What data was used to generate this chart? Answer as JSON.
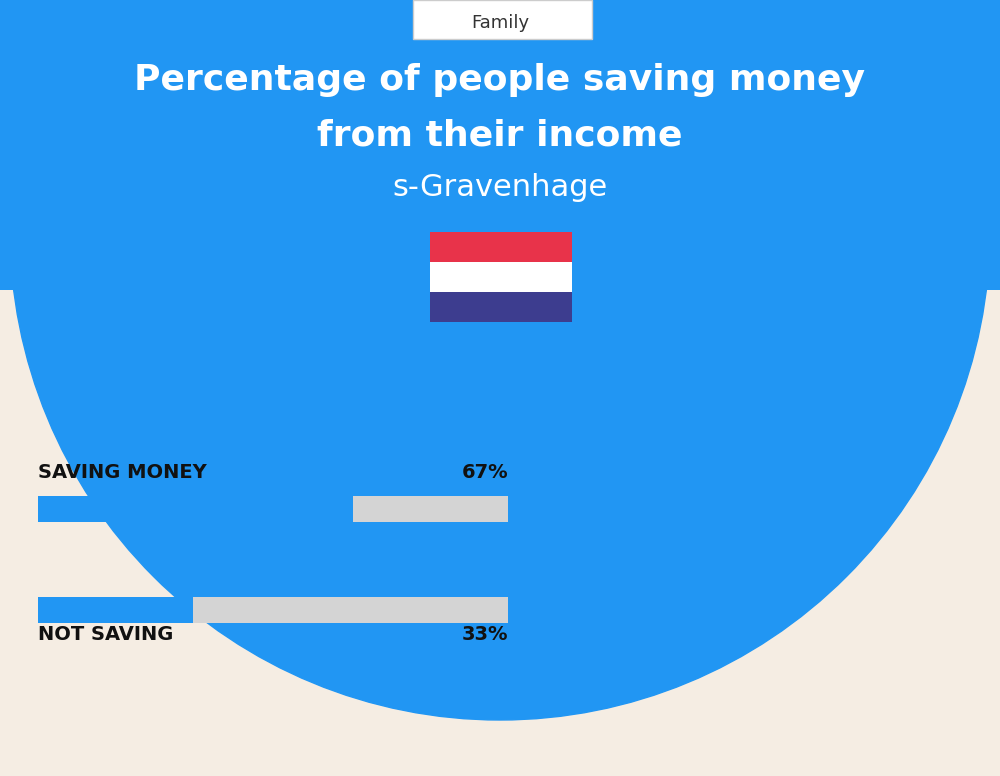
{
  "title_line1": "Percentage of people saving money",
  "title_line2": "from their income",
  "subtitle": "s-Gravenhage",
  "category_label": "Family",
  "bar1_label": "SAVING MONEY",
  "bar1_value": 67,
  "bar1_pct": "67%",
  "bar2_label": "NOT SAVING",
  "bar2_value": 33,
  "bar2_pct": "33%",
  "bar_color": "#2196F3",
  "bar_bg_color": "#D4D4D4",
  "title_color": "#FFFFFF",
  "subtitle_color": "#FFFFFF",
  "bg_top_color": "#2196F3",
  "bg_bottom_color": "#F5EDE3",
  "label_color": "#111111",
  "flag_red": "#E8334A",
  "flag_white": "#FFFFFF",
  "flag_blue": "#3D3D8F",
  "fig_width": 10.0,
  "fig_height": 7.76,
  "dpi": 100
}
